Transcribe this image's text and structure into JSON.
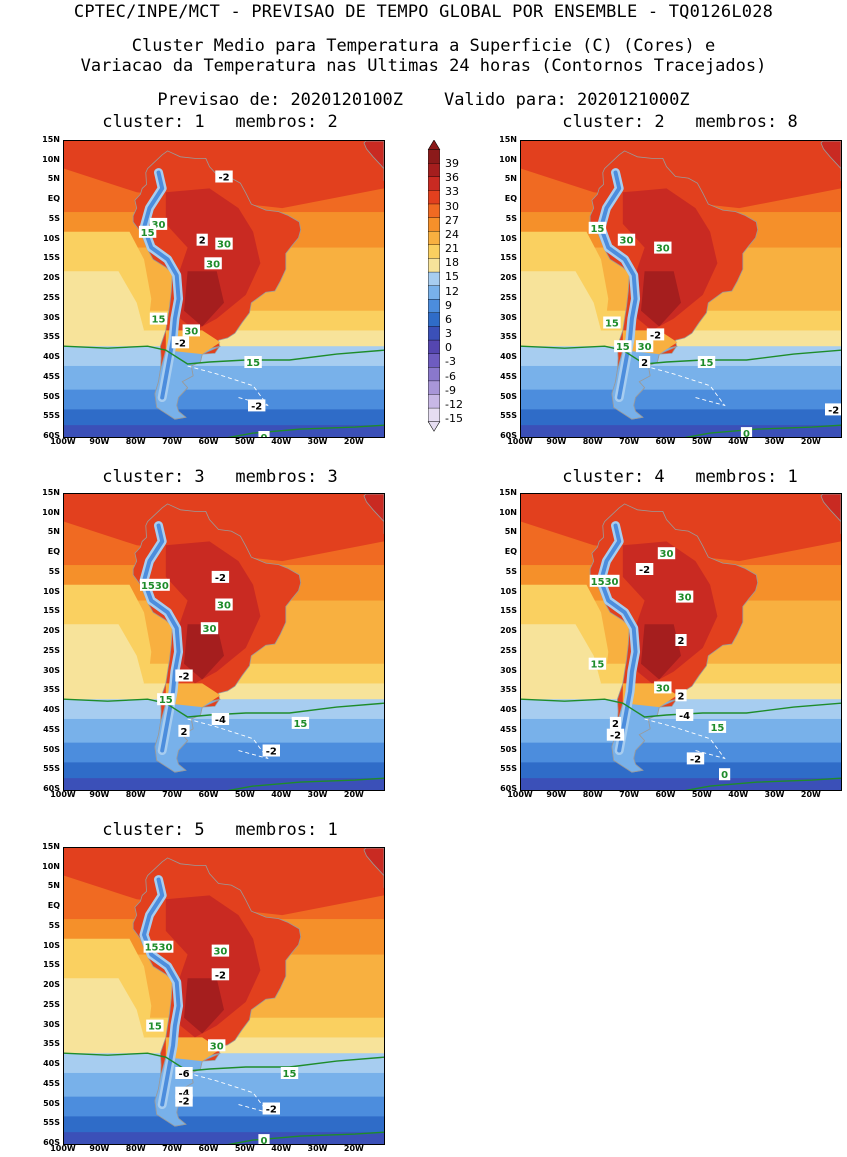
{
  "header": {
    "line1": "CPTEC/INPE/MCT - PREVISAO DE TEMPO GLOBAL POR ENSEMBLE - TQ0126L028",
    "line2": "Cluster Medio para Temperatura a Superficie (C) (Cores) e",
    "line3": "Variacao da Temperatura nas Ultimas 24 horas (Contornos Tracejados)",
    "line4": "Previsao de: 2020120100Z    Valido para: 2020121000Z"
  },
  "axes": {
    "lat_labels": [
      "15N",
      "10N",
      "5N",
      "EQ",
      "5S",
      "10S",
      "15S",
      "20S",
      "25S",
      "30S",
      "35S",
      "40S",
      "45S",
      "50S",
      "55S",
      "60S"
    ],
    "lon_labels": [
      "100W",
      "90W",
      "80W",
      "70W",
      "60W",
      "50W",
      "40W",
      "30W",
      "20W"
    ]
  },
  "colorbar": {
    "labels": [
      "39",
      "36",
      "33",
      "30",
      "27",
      "24",
      "21",
      "18",
      "15",
      "12",
      "9",
      "6",
      "3",
      "0",
      "-3",
      "-6",
      "-9",
      "-12",
      "-15"
    ],
    "colors": [
      "#8b1a1a",
      "#a51e1e",
      "#c92a22",
      "#e2401e",
      "#f06a22",
      "#f5902a",
      "#f8b040",
      "#fad060",
      "#f7e39a",
      "#a7cdf0",
      "#78b1ea",
      "#4c8ddd",
      "#2f6cc8",
      "#3b50b8",
      "#5546b0",
      "#6e5cc0",
      "#8a78cc",
      "#a896d8",
      "#c8b8e6",
      "#e6ddf2"
    ]
  },
  "panels": [
    {
      "title": "cluster: 1   membros: 2",
      "labels": [
        {
          "t": "-2",
          "lon": -56,
          "lat": 6,
          "c": "w"
        },
        {
          "t": "30",
          "lon": -74,
          "lat": -6,
          "c": "g"
        },
        {
          "t": "15",
          "lon": -77,
          "lat": -8,
          "c": "g"
        },
        {
          "t": "2",
          "lon": -62,
          "lat": -10,
          "c": "w"
        },
        {
          "t": "30",
          "lon": -56,
          "lat": -11,
          "c": "g"
        },
        {
          "t": "30",
          "lon": -59,
          "lat": -16,
          "c": "g"
        },
        {
          "t": "15",
          "lon": -74,
          "lat": -30,
          "c": "g"
        },
        {
          "t": "30",
          "lon": -65,
          "lat": -33,
          "c": "g"
        },
        {
          "t": "-2",
          "lon": -68,
          "lat": -36,
          "c": "w"
        },
        {
          "t": "15",
          "lon": -48,
          "lat": -41,
          "c": "g"
        },
        {
          "t": "-2",
          "lon": -47,
          "lat": -52,
          "c": "w"
        },
        {
          "t": "0",
          "lon": -45,
          "lat": -60,
          "c": "g"
        }
      ]
    },
    {
      "title": "cluster: 2   membros: 8",
      "labels": [
        {
          "t": "15",
          "lon": -79,
          "lat": -7,
          "c": "g"
        },
        {
          "t": "30",
          "lon": -71,
          "lat": -10,
          "c": "g"
        },
        {
          "t": "30",
          "lon": -61,
          "lat": -12,
          "c": "g"
        },
        {
          "t": "15",
          "lon": -75,
          "lat": -31,
          "c": "g"
        },
        {
          "t": "-2",
          "lon": -63,
          "lat": -34,
          "c": "w"
        },
        {
          "t": "15",
          "lon": -72,
          "lat": -37,
          "c": "g"
        },
        {
          "t": "30",
          "lon": -66,
          "lat": -37,
          "c": "g"
        },
        {
          "t": "2",
          "lon": -66,
          "lat": -41,
          "c": "w"
        },
        {
          "t": "15",
          "lon": -49,
          "lat": -41,
          "c": "g"
        },
        {
          "t": "-2",
          "lon": -14,
          "lat": -53,
          "c": "w"
        },
        {
          "t": "0",
          "lon": -38,
          "lat": -59,
          "c": "g"
        }
      ]
    },
    {
      "title": "cluster: 3   membros: 3",
      "labels": [
        {
          "t": "-2",
          "lon": -57,
          "lat": -6,
          "c": "w"
        },
        {
          "t": "1530",
          "lon": -75,
          "lat": -8,
          "c": "g"
        },
        {
          "t": "30",
          "lon": -56,
          "lat": -13,
          "c": "g"
        },
        {
          "t": "30",
          "lon": -60,
          "lat": -19,
          "c": "g"
        },
        {
          "t": "-2",
          "lon": -67,
          "lat": -31,
          "c": "w"
        },
        {
          "t": "15",
          "lon": -72,
          "lat": -37,
          "c": "g"
        },
        {
          "t": "-4",
          "lon": -57,
          "lat": -42,
          "c": "w"
        },
        {
          "t": "15",
          "lon": -35,
          "lat": -43,
          "c": "g"
        },
        {
          "t": "2",
          "lon": -67,
          "lat": -45,
          "c": "w"
        },
        {
          "t": "-2",
          "lon": -43,
          "lat": -50,
          "c": "w"
        }
      ]
    },
    {
      "title": "cluster: 4   membros: 1",
      "labels": [
        {
          "t": "30",
          "lon": -60,
          "lat": 0,
          "c": "g"
        },
        {
          "t": "-2",
          "lon": -66,
          "lat": -4,
          "c": "w"
        },
        {
          "t": "1530",
          "lon": -77,
          "lat": -7,
          "c": "g"
        },
        {
          "t": "30",
          "lon": -55,
          "lat": -11,
          "c": "g"
        },
        {
          "t": "2",
          "lon": -56,
          "lat": -22,
          "c": "w"
        },
        {
          "t": "15",
          "lon": -79,
          "lat": -28,
          "c": "g"
        },
        {
          "t": "30",
          "lon": -61,
          "lat": -34,
          "c": "g"
        },
        {
          "t": "2",
          "lon": -56,
          "lat": -36,
          "c": "w"
        },
        {
          "t": "-4",
          "lon": -55,
          "lat": -41,
          "c": "w"
        },
        {
          "t": "15",
          "lon": -46,
          "lat": -44,
          "c": "g"
        },
        {
          "t": "2",
          "lon": -74,
          "lat": -43,
          "c": "w"
        },
        {
          "t": "-2",
          "lon": -74,
          "lat": -46,
          "c": "w"
        },
        {
          "t": "-2",
          "lon": -52,
          "lat": -52,
          "c": "w"
        },
        {
          "t": "0",
          "lon": -44,
          "lat": -56,
          "c": "g"
        }
      ]
    },
    {
      "title": "cluster: 5   membros: 1",
      "labels": [
        {
          "t": "1530",
          "lon": -74,
          "lat": -10,
          "c": "g"
        },
        {
          "t": "30",
          "lon": -57,
          "lat": -11,
          "c": "g"
        },
        {
          "t": "-2",
          "lon": -57,
          "lat": -17,
          "c": "w"
        },
        {
          "t": "15",
          "lon": -75,
          "lat": -30,
          "c": "g"
        },
        {
          "t": "30",
          "lon": -58,
          "lat": -35,
          "c": "g"
        },
        {
          "t": "-6",
          "lon": -67,
          "lat": -42,
          "c": "w"
        },
        {
          "t": "15",
          "lon": -38,
          "lat": -42,
          "c": "g"
        },
        {
          "t": "-4",
          "lon": -67,
          "lat": -47,
          "c": "w"
        },
        {
          "t": "-2",
          "lon": -67,
          "lat": -49,
          "c": "w"
        },
        {
          "t": "-2",
          "lon": -43,
          "lat": -51,
          "c": "w"
        },
        {
          "t": "0",
          "lon": -45,
          "lat": -59,
          "c": "g"
        }
      ]
    }
  ]
}
